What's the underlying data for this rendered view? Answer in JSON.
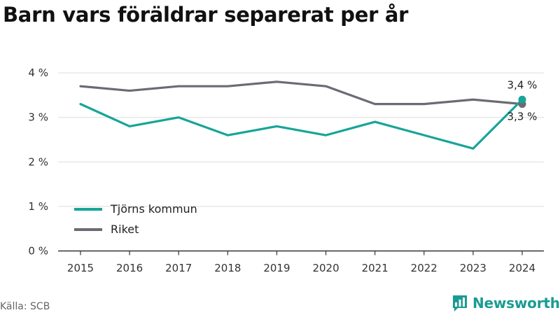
{
  "title": "Barn vars föräldrar separerat per år",
  "source": "Källa: SCB",
  "brand": {
    "name": "Newsworthy",
    "icon": "newsworthy-bar-chart-icon"
  },
  "colors": {
    "series1": "#17a599",
    "series2": "#6b6b73",
    "grid": "#dddddd",
    "axis": "#333333"
  },
  "chart_data": {
    "type": "line",
    "x": [
      "2015",
      "2016",
      "2017",
      "2018",
      "2019",
      "2020",
      "2021",
      "2022",
      "2023",
      "2024"
    ],
    "series": [
      {
        "name": "Tjörns kommun",
        "values": [
          3.3,
          2.8,
          3.0,
          2.6,
          2.8,
          2.6,
          2.9,
          2.6,
          2.3,
          3.4
        ]
      },
      {
        "name": "Riket",
        "values": [
          3.7,
          3.6,
          3.7,
          3.7,
          3.8,
          3.7,
          3.3,
          3.3,
          3.4,
          3.3
        ]
      }
    ],
    "yticks": [
      "0 %",
      "1 %",
      "2 %",
      "3 %",
      "4 %"
    ],
    "ylim": [
      0,
      4.3
    ],
    "grid": true,
    "legend": "bottom-left",
    "end_labels": [
      "3,4 %",
      "3,3 %"
    ]
  }
}
